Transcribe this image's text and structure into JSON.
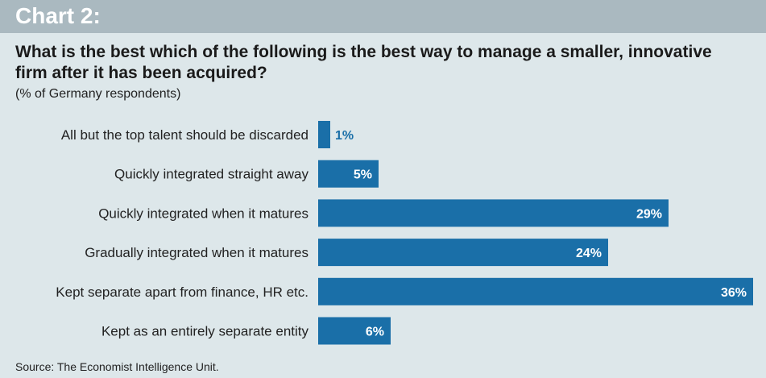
{
  "header": {
    "chart_label": "Chart 2:"
  },
  "chart_data": {
    "type": "bar",
    "orientation": "horizontal",
    "title": "What is the best which of the following is the best way to manage a smaller, innovative firm after it has been acquired?",
    "subtitle": "(% of Germany respondents)",
    "categories": [
      "All but the top talent should be discarded",
      "Quickly integrated straight away",
      "Quickly integrated when it matures",
      "Gradually integrated when it matures",
      "Kept separate apart from finance, HR etc.",
      "Kept as an entirely separate entity"
    ],
    "values": [
      1,
      5,
      29,
      24,
      36,
      6
    ],
    "value_labels": [
      "1%",
      "5%",
      "29%",
      "24%",
      "36%",
      "6%"
    ],
    "xlim": [
      0,
      36
    ],
    "grid": false,
    "bar_color": "#1a6fa8",
    "label_color_inside": "#ffffff",
    "label_color_outside": "#1a6fa8"
  },
  "footer": {
    "source": "Source: The Economist Intelligence Unit."
  }
}
